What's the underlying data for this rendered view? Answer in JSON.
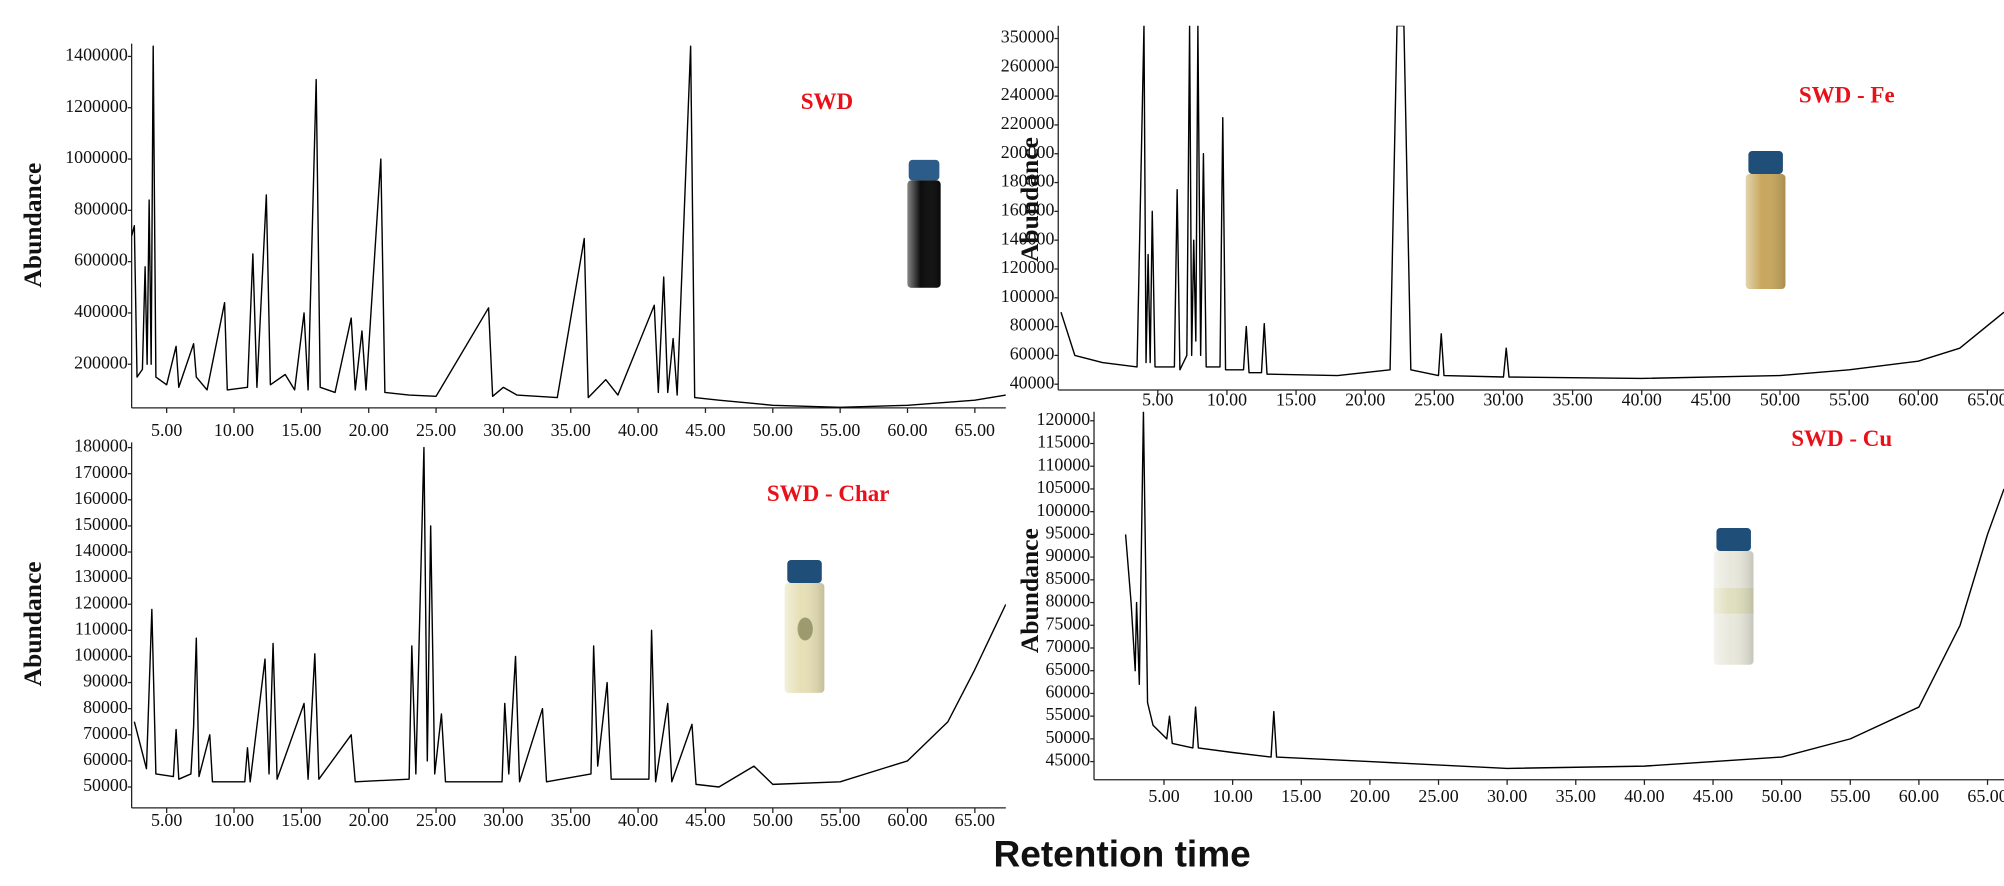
{
  "xlabel": "Retention time",
  "chart_data": [
    {
      "type": "line",
      "annotation": "SWD",
      "ylabel": "Abundance",
      "color": "#000000",
      "xlim": [
        2.4,
        67.3
      ],
      "ylim": [
        30000,
        1450000
      ],
      "xticks": [
        {
          "value": 5,
          "label": "5.00"
        },
        {
          "value": 10,
          "label": "10.00"
        },
        {
          "value": 15,
          "label": "15.00"
        },
        {
          "value": 20,
          "label": "20.00"
        },
        {
          "value": 25,
          "label": "25.00"
        },
        {
          "value": 30,
          "label": "30.00"
        },
        {
          "value": 35,
          "label": "35.00"
        },
        {
          "value": 40,
          "label": "40.00"
        },
        {
          "value": 45,
          "label": "45.00"
        },
        {
          "value": 50,
          "label": "50.00"
        },
        {
          "value": 55,
          "label": "55.00"
        },
        {
          "value": 60,
          "label": "60.00"
        },
        {
          "value": 65,
          "label": "65.00"
        }
      ],
      "yticks": [
        200000,
        400000,
        600000,
        800000,
        1000000,
        1200000,
        1400000
      ],
      "x": [
        2.4,
        2.6,
        2.8,
        3.2,
        3.4,
        3.55,
        3.7,
        3.85,
        4.0,
        4.2,
        5.0,
        5.7,
        5.9,
        7.0,
        7.2,
        8.0,
        9.3,
        9.5,
        11.0,
        11.4,
        11.7,
        12.4,
        12.7,
        13.8,
        14.5,
        15.2,
        15.5,
        16.1,
        16.4,
        17.5,
        18.7,
        19.0,
        19.5,
        19.8,
        20.9,
        21.2,
        23.0,
        25.0,
        28.9,
        29.2,
        30.0,
        31.0,
        34.0,
        36.0,
        36.3,
        37.6,
        38.5,
        41.2,
        41.5,
        41.9,
        42.2,
        42.6,
        42.9,
        43.9,
        44.2,
        46.0,
        48.0,
        50.0,
        55.0,
        60.0,
        65.0,
        67.3
      ],
      "values": [
        700000,
        740000,
        150000,
        180000,
        580000,
        200000,
        840000,
        200000,
        1440000,
        150000,
        120000,
        270000,
        110000,
        280000,
        150000,
        100000,
        440000,
        100000,
        110000,
        630000,
        110000,
        860000,
        120000,
        160000,
        100000,
        400000,
        100000,
        1310000,
        110000,
        90000,
        380000,
        100000,
        330000,
        100000,
        1000000,
        90000,
        80000,
        75000,
        420000,
        75000,
        110000,
        80000,
        70000,
        690000,
        70000,
        140000,
        80000,
        430000,
        90000,
        540000,
        90000,
        300000,
        80000,
        1440000,
        70000,
        60000,
        50000,
        40000,
        32000,
        40000,
        60000,
        80000
      ]
    },
    {
      "type": "line",
      "annotation": "SWD - Fe",
      "ylabel": "Abundance",
      "color": "#000000",
      "y_scale": "broken",
      "xlim": [
        -2.2,
        66.2
      ],
      "ylim": [
        36000,
        390000
      ],
      "xticks": [
        {
          "value": 5,
          "label": "5.00"
        },
        {
          "value": 10,
          "label": "10.00"
        },
        {
          "value": 15,
          "label": "15.00"
        },
        {
          "value": 20,
          "label": "20.00"
        },
        {
          "value": 25,
          "label": "25.00"
        },
        {
          "value": 30,
          "label": "30.00"
        },
        {
          "value": 35,
          "label": "35.00"
        },
        {
          "value": 40,
          "label": "40.00"
        },
        {
          "value": 45,
          "label": "45.00"
        },
        {
          "value": 50,
          "label": "50.00"
        },
        {
          "value": 55,
          "label": "55.00"
        },
        {
          "value": 60,
          "label": "60.00"
        },
        {
          "value": 65,
          "label": "65.00"
        }
      ],
      "yticks": [
        40000,
        60000,
        80000,
        100000,
        120000,
        140000,
        160000,
        180000,
        200000,
        220000,
        240000,
        260000,
        350000
      ],
      "x": [
        -2.0,
        -1.0,
        1.0,
        3.5,
        4.0,
        4.15,
        4.3,
        4.45,
        4.6,
        4.8,
        6.2,
        6.4,
        6.6,
        7.1,
        7.3,
        7.45,
        7.6,
        7.75,
        7.9,
        8.1,
        8.3,
        8.5,
        9.5,
        9.7,
        9.9,
        11.2,
        11.4,
        11.6,
        12.5,
        12.7,
        12.9,
        18.0,
        21.8,
        22.3,
        22.8,
        23.3,
        25.3,
        25.5,
        25.7,
        30.0,
        30.2,
        30.4,
        40.0,
        50.0,
        55.0,
        60.0,
        63.0,
        66.2
      ],
      "values": [
        90000,
        60000,
        55000,
        52000,
        390000,
        55000,
        130000,
        55000,
        160000,
        52000,
        52000,
        175000,
        50000,
        60000,
        390000,
        60000,
        140000,
        70000,
        390000,
        60000,
        200000,
        52000,
        52000,
        225000,
        50000,
        50000,
        80000,
        48000,
        48000,
        82000,
        47000,
        46000,
        50000,
        390000,
        390000,
        50000,
        46000,
        75000,
        46000,
        45000,
        65000,
        45000,
        44000,
        46000,
        50000,
        56000,
        65000,
        90000
      ]
    },
    {
      "type": "line",
      "annotation": "SWD - Char",
      "ylabel": "Abundance",
      "color": "#000000",
      "xlim": [
        2.4,
        67.3
      ],
      "ylim": [
        42000,
        182000
      ],
      "xticks": [
        {
          "value": 5,
          "label": "5.00"
        },
        {
          "value": 10,
          "label": "10.00"
        },
        {
          "value": 15,
          "label": "15.00"
        },
        {
          "value": 20,
          "label": "20.00"
        },
        {
          "value": 25,
          "label": "25.00"
        },
        {
          "value": 30,
          "label": "30.00"
        },
        {
          "value": 35,
          "label": "35.00"
        },
        {
          "value": 40,
          "label": "40.00"
        },
        {
          "value": 45,
          "label": "45.00"
        },
        {
          "value": 50,
          "label": "50.00"
        },
        {
          "value": 55,
          "label": "55.00"
        },
        {
          "value": 60,
          "label": "60.00"
        },
        {
          "value": 65,
          "label": "65.00"
        }
      ],
      "yticks": [
        50000,
        60000,
        70000,
        80000,
        90000,
        100000,
        110000,
        120000,
        130000,
        140000,
        150000,
        160000,
        170000,
        180000
      ],
      "x": [
        2.6,
        3.5,
        3.9,
        4.2,
        5.5,
        5.7,
        5.9,
        6.8,
        7.0,
        7.2,
        7.4,
        8.2,
        8.4,
        10.8,
        11.0,
        11.2,
        12.3,
        12.6,
        12.9,
        13.2,
        15.2,
        15.5,
        16.0,
        16.3,
        18.7,
        19.0,
        23.0,
        23.2,
        23.5,
        24.1,
        24.35,
        24.6,
        24.9,
        25.4,
        25.7,
        29.9,
        30.1,
        30.4,
        30.9,
        31.2,
        32.9,
        33.2,
        36.5,
        36.7,
        37.0,
        37.7,
        38.0,
        40.8,
        41.0,
        41.3,
        42.2,
        42.5,
        44.0,
        44.3,
        46.0,
        48.6,
        50.0,
        55.0,
        60.0,
        63.0,
        65.0,
        67.3
      ],
      "values": [
        75000,
        57000,
        118000,
        55000,
        54000,
        72000,
        53000,
        55000,
        73000,
        107000,
        54000,
        70000,
        52000,
        52000,
        65000,
        52000,
        99000,
        55000,
        105000,
        53000,
        82000,
        53000,
        101000,
        53000,
        70000,
        52000,
        53000,
        104000,
        55000,
        180000,
        60000,
        150000,
        55000,
        78000,
        52000,
        52000,
        82000,
        55000,
        100000,
        52000,
        80000,
        52000,
        55000,
        104000,
        58000,
        90000,
        53000,
        53000,
        110000,
        52000,
        82000,
        52000,
        74000,
        51000,
        50000,
        58000,
        51000,
        52000,
        60000,
        75000,
        95000,
        120000
      ]
    },
    {
      "type": "line",
      "annotation": "SWD - Cu",
      "ylabel": "Abundance",
      "color": "#000000",
      "xlim": [
        -0.1,
        66.2
      ],
      "ylim": [
        41000,
        122000
      ],
      "xticks": [
        {
          "value": 5,
          "label": "5.00"
        },
        {
          "value": 10,
          "label": "10.00"
        },
        {
          "value": 15,
          "label": "15.00"
        },
        {
          "value": 20,
          "label": "20.00"
        },
        {
          "value": 25,
          "label": "25.00"
        },
        {
          "value": 30,
          "label": "30.00"
        },
        {
          "value": 35,
          "label": "35.00"
        },
        {
          "value": 40,
          "label": "40.00"
        },
        {
          "value": 45,
          "label": "45.00"
        },
        {
          "value": 50,
          "label": "50.00"
        },
        {
          "value": 55,
          "label": "55.00"
        },
        {
          "value": 60,
          "label": "60.00"
        },
        {
          "value": 65,
          "label": "65.00"
        }
      ],
      "yticks": [
        45000,
        50000,
        55000,
        60000,
        65000,
        70000,
        75000,
        80000,
        85000,
        90000,
        95000,
        100000,
        105000,
        110000,
        115000,
        120000
      ],
      "x": [
        2.2,
        2.6,
        2.9,
        3.0,
        3.2,
        3.5,
        3.8,
        4.2,
        5.2,
        5.4,
        5.6,
        7.1,
        7.3,
        7.5,
        10.0,
        12.8,
        13.0,
        13.2,
        20.0,
        30.0,
        40.0,
        50.0,
        55.0,
        60.0,
        63.0,
        65.0,
        66.2
      ],
      "values": [
        95000,
        80000,
        65000,
        80000,
        62000,
        122000,
        58000,
        53000,
        50000,
        55000,
        49000,
        48000,
        57000,
        48000,
        47000,
        46000,
        56000,
        46000,
        45000,
        43500,
        44000,
        46000,
        50000,
        57000,
        75000,
        95000,
        105000
      ]
    }
  ]
}
